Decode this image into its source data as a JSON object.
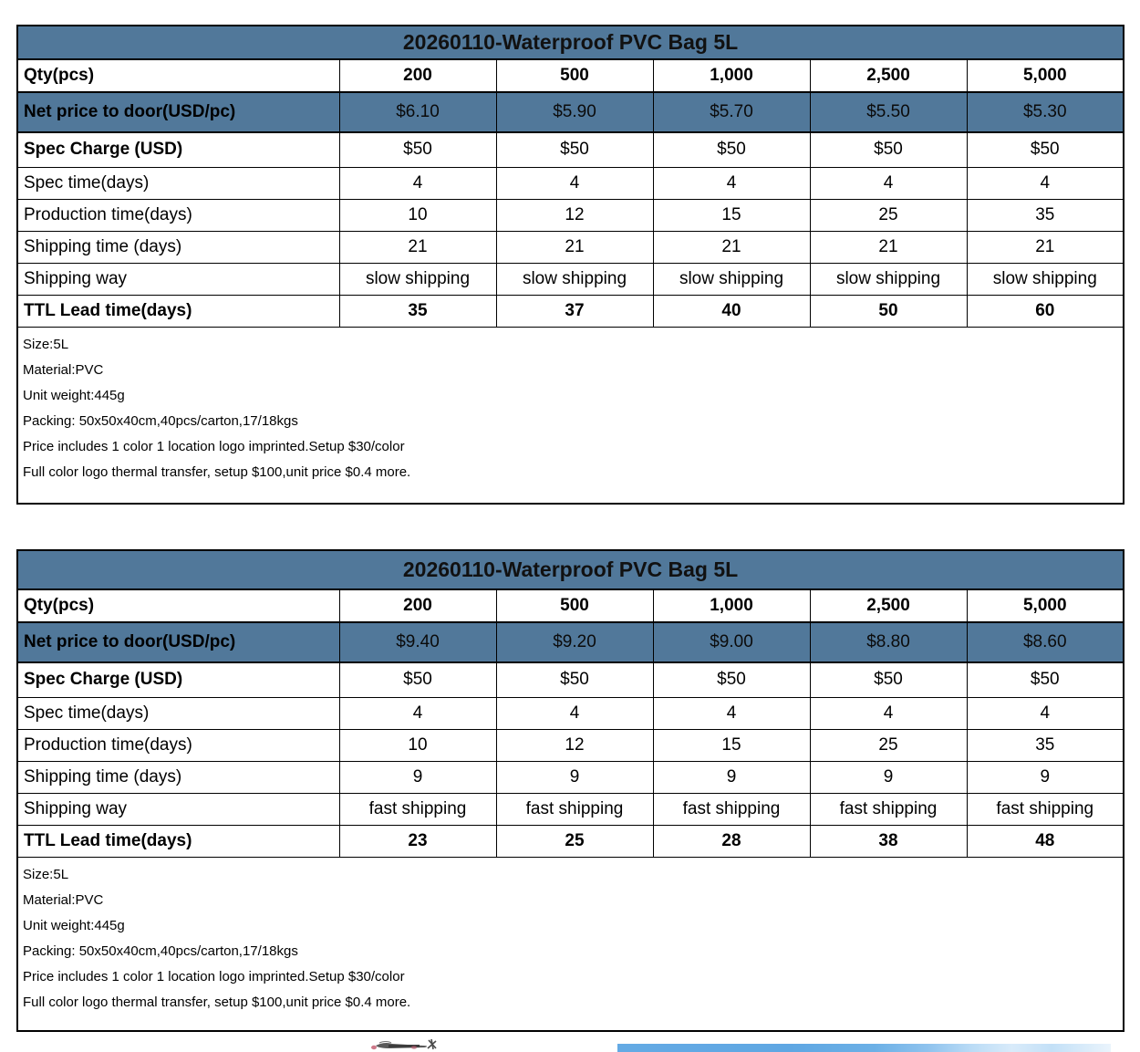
{
  "colors": {
    "header_blue": "#51789A",
    "border_black": "#000000",
    "banner_blue": "#64AAE4"
  },
  "tables": [
    {
      "title": "20260110-Waterproof PVC Bag 5L",
      "qty_row": {
        "label": "Qty(pcs)",
        "values": [
          "200",
          "500",
          "1,000",
          "2,500",
          "5,000"
        ]
      },
      "rows": [
        {
          "label": "Net price to door(USD/pc)",
          "values": [
            "$6.10",
            "$5.90",
            "$5.70",
            "$5.50",
            "$5.30"
          ],
          "highlight": true,
          "bold_label": true,
          "bold_values": false
        },
        {
          "label": "Spec Charge (USD)",
          "values": [
            "$50",
            "$50",
            "$50",
            "$50",
            "$50"
          ],
          "bold_label": true,
          "bold_values": false
        },
        {
          "label": "Spec time(days)",
          "values": [
            "4",
            "4",
            "4",
            "4",
            "4"
          ],
          "bold_label": false,
          "bold_values": false
        },
        {
          "label": "Production time(days)",
          "values": [
            "10",
            "12",
            "15",
            "25",
            "35"
          ],
          "bold_label": false,
          "bold_values": false
        },
        {
          "label": "Shipping time (days)",
          "values": [
            "21",
            "21",
            "21",
            "21",
            "21"
          ],
          "bold_label": false,
          "bold_values": false
        },
        {
          "label": "Shipping way",
          "values": [
            "slow shipping",
            "slow shipping",
            "slow shipping",
            "slow shipping",
            "slow shipping"
          ],
          "bold_label": false,
          "bold_values": false
        },
        {
          "label": "TTL Lead time(days)",
          "values": [
            "35",
            "37",
            "40",
            "50",
            "60"
          ],
          "bold_label": true,
          "bold_values": true
        }
      ],
      "notes": [
        "Size:5L",
        "Material:PVC",
        "Unit weight:445g",
        "Packing: 50x50x40cm,40pcs/carton,17/18kgs",
        "Price includes 1 color 1 location logo imprinted.Setup $30/color",
        "Full color logo thermal transfer, setup $100,unit price $0.4 more."
      ]
    },
    {
      "title": "20260110-Waterproof PVC Bag 5L",
      "qty_row": {
        "label": "Qty(pcs)",
        "values": [
          "200",
          "500",
          "1,000",
          "2,500",
          "5,000"
        ]
      },
      "rows": [
        {
          "label": "Net price to door(USD/pc)",
          "values": [
            "$9.40",
            "$9.20",
            "$9.00",
            "$8.80",
            "$8.60"
          ],
          "highlight": true,
          "bold_label": true,
          "bold_values": false
        },
        {
          "label": "Spec Charge (USD)",
          "values": [
            "$50",
            "$50",
            "$50",
            "$50",
            "$50"
          ],
          "bold_label": true,
          "bold_values": false
        },
        {
          "label": "Spec time(days)",
          "values": [
            "4",
            "4",
            "4",
            "4",
            "4"
          ],
          "bold_label": false,
          "bold_values": false
        },
        {
          "label": "Production time(days)",
          "values": [
            "10",
            "12",
            "15",
            "25",
            "35"
          ],
          "bold_label": false,
          "bold_values": false
        },
        {
          "label": "Shipping time (days)",
          "values": [
            "9",
            "9",
            "9",
            "9",
            "9"
          ],
          "bold_label": false,
          "bold_values": false
        },
        {
          "label": "Shipping way",
          "values": [
            "fast shipping",
            "fast shipping",
            "fast shipping",
            "fast shipping",
            "fast shipping"
          ],
          "bold_label": false,
          "bold_values": false
        },
        {
          "label": "TTL Lead time(days)",
          "values": [
            "23",
            "25",
            "28",
            "38",
            "48"
          ],
          "bold_label": true,
          "bold_values": true
        }
      ],
      "notes": [
        "Size:5L",
        "Material:PVC",
        "Unit weight:445g",
        "Packing: 50x50x40cm,40pcs/carton,17/18kgs",
        "Price includes 1 color 1 location logo imprinted.Setup $30/color",
        "Full color logo thermal transfer, setup $100,unit price $0.4 more."
      ]
    }
  ],
  "footer": {
    "photo_fragment": "partial-product-photo-top-edge",
    "banner_fragment": "partial-blue-banner-top-edge"
  }
}
